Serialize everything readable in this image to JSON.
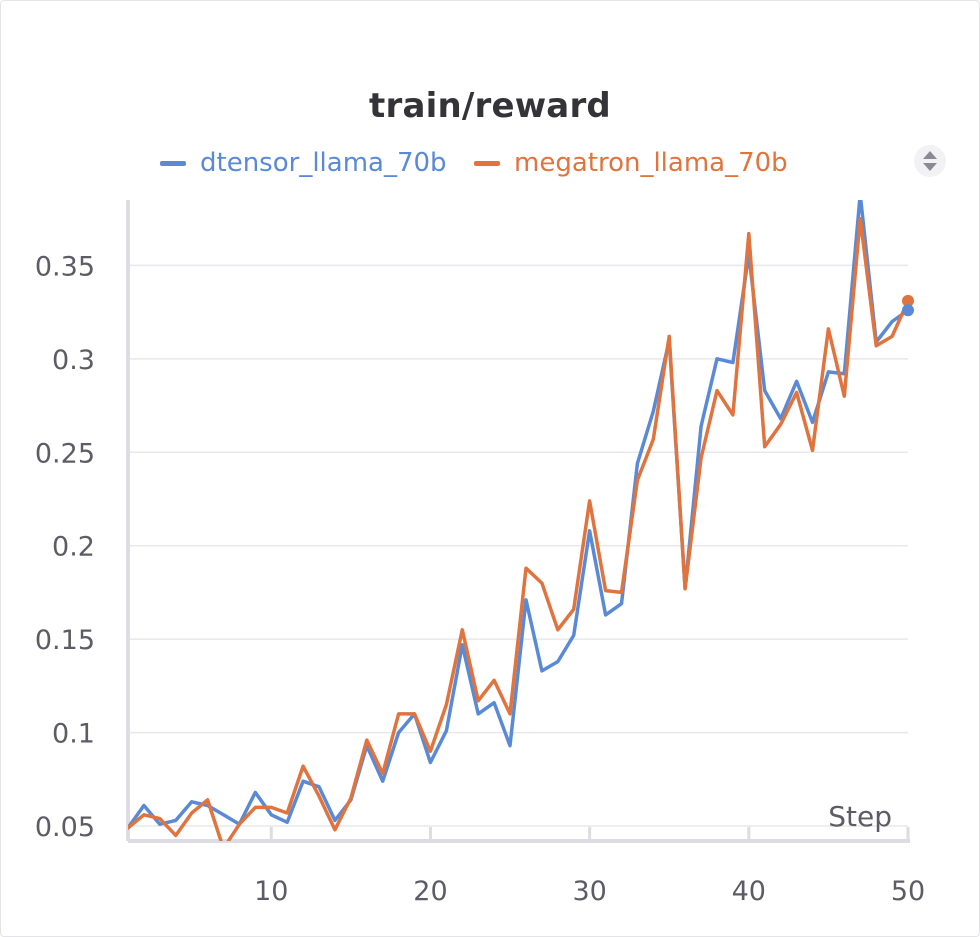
{
  "chart_data": {
    "type": "line",
    "title": "train/reward",
    "xlabel": "Step",
    "ylabel": "",
    "xlim": [
      1,
      50
    ],
    "ylim": [
      0.042,
      0.385
    ],
    "x_ticks": [
      10,
      20,
      30,
      40,
      50
    ],
    "x_tick_labels": [
      "10",
      "20",
      "30",
      "40",
      "50"
    ],
    "y_ticks": [
      0.05,
      0.1,
      0.15,
      0.2,
      0.25,
      0.3,
      0.35
    ],
    "y_tick_labels": [
      "0.05",
      "0.1",
      "0.15",
      "0.2",
      "0.25",
      "0.3",
      "0.35"
    ],
    "grid": true,
    "legend_position": "top",
    "x": [
      1,
      2,
      3,
      4,
      5,
      6,
      7,
      8,
      9,
      10,
      11,
      12,
      13,
      14,
      15,
      16,
      17,
      18,
      19,
      20,
      21,
      22,
      23,
      24,
      25,
      26,
      27,
      28,
      29,
      30,
      31,
      32,
      33,
      34,
      35,
      36,
      37,
      38,
      39,
      40,
      41,
      42,
      43,
      44,
      45,
      46,
      47,
      48,
      49,
      50
    ],
    "series": [
      {
        "name": "dtensor_llama_70b",
        "color": "#5a8ad6",
        "values": [
          0.049,
          0.061,
          0.051,
          0.053,
          0.063,
          0.061,
          0.056,
          0.051,
          0.068,
          0.056,
          0.052,
          0.074,
          0.071,
          0.053,
          0.064,
          0.093,
          0.074,
          0.1,
          0.11,
          0.084,
          0.101,
          0.147,
          0.11,
          0.116,
          0.093,
          0.171,
          0.133,
          0.138,
          0.152,
          0.208,
          0.163,
          0.169,
          0.244,
          0.272,
          0.31,
          0.177,
          0.264,
          0.3,
          0.298,
          0.356,
          0.283,
          0.268,
          0.288,
          0.266,
          0.293,
          0.292,
          0.388,
          0.309,
          0.32,
          0.326
        ]
      },
      {
        "name": "megatron_llama_70b",
        "color": "#e0743f",
        "values": [
          0.049,
          0.056,
          0.054,
          0.045,
          0.057,
          0.064,
          0.038,
          0.051,
          0.06,
          0.06,
          0.057,
          0.082,
          0.066,
          0.048,
          0.065,
          0.096,
          0.078,
          0.11,
          0.11,
          0.09,
          0.115,
          0.155,
          0.117,
          0.128,
          0.11,
          0.188,
          0.18,
          0.155,
          0.166,
          0.224,
          0.176,
          0.175,
          0.235,
          0.257,
          0.312,
          0.177,
          0.247,
          0.283,
          0.27,
          0.367,
          0.253,
          0.265,
          0.282,
          0.251,
          0.316,
          0.28,
          0.375,
          0.307,
          0.312,
          0.331
        ]
      }
    ]
  }
}
